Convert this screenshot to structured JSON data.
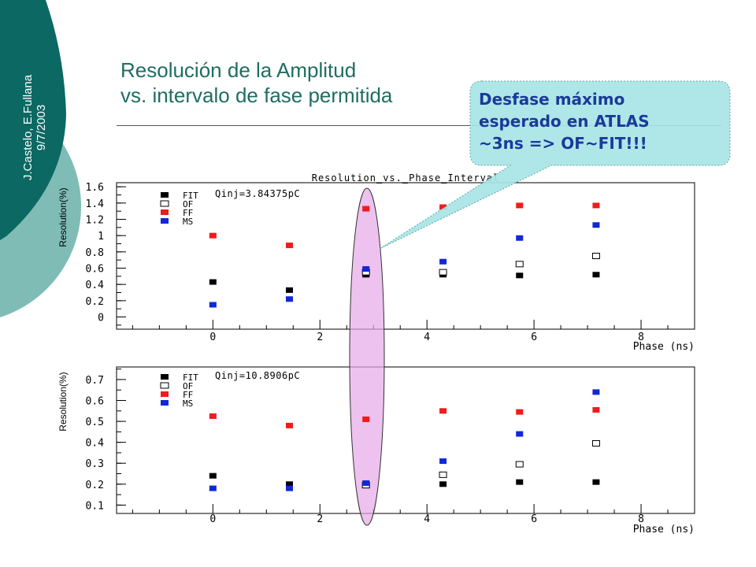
{
  "slide": {
    "title_line1": "Resolución de la Amplitud",
    "title_line2": "vs. intervalo de fase permitida",
    "side_line1": "J.Castelo, E.Fullana",
    "side_line2": "9/7/2003",
    "callout_line1": "Desfase máximo",
    "callout_line2": "esperado en ATLAS",
    "callout_line3": "~3ns => OF~FIT!!!"
  },
  "colors": {
    "teal_dark": "#0c6863",
    "teal_light": "#7fbcb6",
    "highlight": "#e7a8e8",
    "callout_fill": "#a8e5e6",
    "FIT": "#000000",
    "OF": "#000000",
    "FF": "#ee1c1c",
    "MS": "#1228d6"
  },
  "chart_data": [
    {
      "type": "scatter",
      "title": "Resolution_vs._Phase_Interval",
      "annotation": "Qinj=3.84375pC",
      "xlabel": "Phase (ns)",
      "ylabel": "Resolution(%)",
      "xlim": [
        -1.8,
        9.0
      ],
      "ylim": [
        -0.15,
        1.65
      ],
      "xticks": [
        0,
        2,
        4,
        6,
        8
      ],
      "yticks": [
        0,
        0.2,
        0.4,
        0.6,
        0.8,
        1,
        1.2,
        1.4,
        1.6
      ],
      "ytick_labels": [
        "0",
        "0.2",
        "0.4",
        "0.6",
        "0.8",
        "1",
        "1.2",
        "1.4",
        "1.6"
      ],
      "x": [
        0,
        1.43,
        2.86,
        4.3,
        5.73,
        7.16
      ],
      "legend": [
        "FIT",
        "OF",
        "FF",
        "MS"
      ],
      "series": [
        {
          "name": "FIT",
          "marker": "filled-black",
          "values": [
            0.43,
            0.33,
            0.52,
            0.52,
            0.51,
            0.52
          ]
        },
        {
          "name": "OF",
          "marker": "open",
          "values": [
            null,
            null,
            0.55,
            0.55,
            0.65,
            0.75
          ]
        },
        {
          "name": "FF",
          "marker": "filled-red",
          "values": [
            1.0,
            0.88,
            1.33,
            1.35,
            1.37,
            1.37
          ]
        },
        {
          "name": "MS",
          "marker": "filled-blue",
          "values": [
            0.15,
            0.22,
            0.59,
            0.68,
            0.97,
            1.13
          ]
        }
      ],
      "grid": false
    },
    {
      "type": "scatter",
      "title": "",
      "annotation": "Qinj=10.8906pC",
      "xlabel": "Phase (ns)",
      "ylabel": "Resolution(%)",
      "xlim": [
        -1.8,
        9.0
      ],
      "ylim": [
        0.06,
        0.76
      ],
      "xticks": [
        0,
        2,
        4,
        6,
        8
      ],
      "yticks": [
        0.1,
        0.2,
        0.3,
        0.4,
        0.5,
        0.6,
        0.7
      ],
      "ytick_labels": [
        "0.1",
        "0.2",
        "0.3",
        "0.4",
        "0.5",
        "0.6",
        "0.7"
      ],
      "x": [
        0,
        1.43,
        2.86,
        4.3,
        5.73,
        7.16
      ],
      "legend": [
        "FIT",
        "OF",
        "FF",
        "MS"
      ],
      "series": [
        {
          "name": "FIT",
          "marker": "filled-black",
          "values": [
            0.24,
            0.2,
            0.2,
            0.2,
            0.21,
            0.21
          ]
        },
        {
          "name": "OF",
          "marker": "open",
          "values": [
            null,
            null,
            0.195,
            0.245,
            0.295,
            0.395
          ]
        },
        {
          "name": "FF",
          "marker": "filled-red",
          "values": [
            0.525,
            0.48,
            0.51,
            0.55,
            0.545,
            0.555
          ]
        },
        {
          "name": "MS",
          "marker": "filled-blue",
          "values": [
            0.18,
            0.18,
            0.205,
            0.31,
            0.44,
            0.64
          ]
        }
      ],
      "grid": false
    }
  ]
}
